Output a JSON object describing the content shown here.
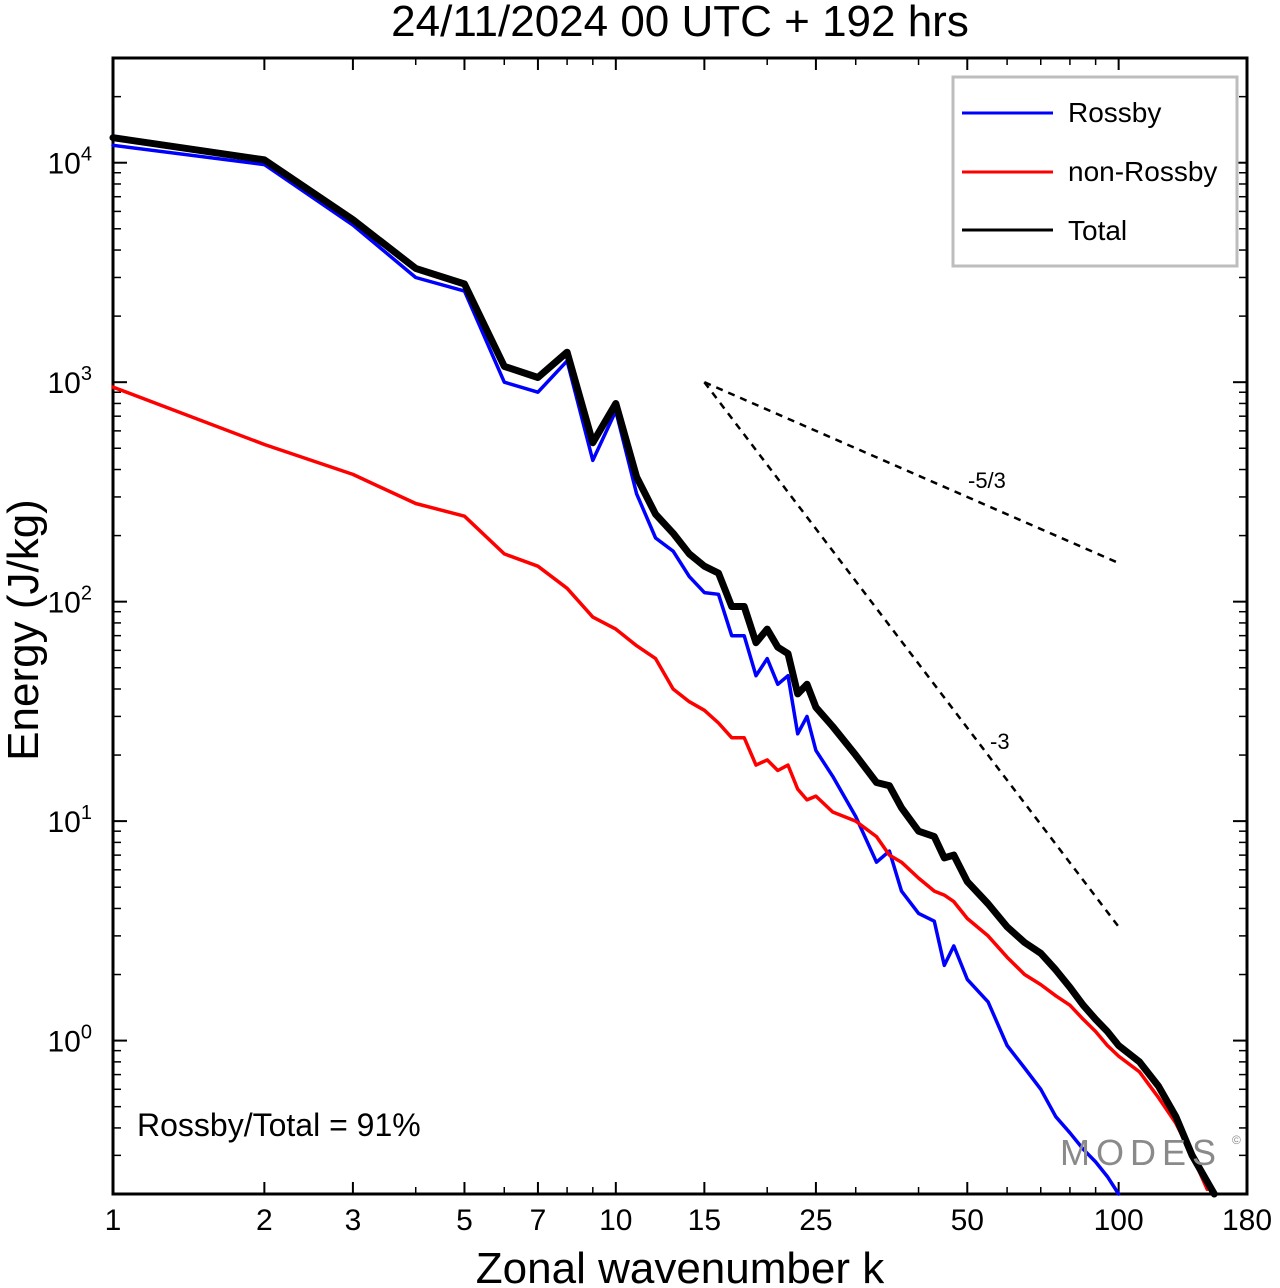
{
  "chart_data": {
    "type": "line",
    "title": "24/11/2024  00 UTC  + 192 hrs",
    "xlabel": "Zonal wavenumber k",
    "ylabel": "Energy (J/kg)",
    "x_scale": "log",
    "y_scale": "log",
    "xlim": [
      1,
      180
    ],
    "ylim": [
      0.2,
      30000
    ],
    "x_ticks": [
      1,
      2,
      3,
      5,
      7,
      10,
      15,
      25,
      50,
      100,
      180
    ],
    "y_ticks": [
      {
        "value": 1,
        "base": "10",
        "exp": "0"
      },
      {
        "value": 10,
        "base": "10",
        "exp": "1"
      },
      {
        "value": 100,
        "base": "10",
        "exp": "2"
      },
      {
        "value": 1000,
        "base": "10",
        "exp": "3"
      },
      {
        "value": 10000,
        "base": "10",
        "exp": "4"
      }
    ],
    "legend_position": "top-right",
    "series": [
      {
        "name": "Rossby",
        "color": "#0000ff",
        "x": [
          1,
          2,
          3,
          4,
          5,
          6,
          7,
          8,
          9,
          10,
          11,
          12,
          13,
          14,
          15,
          16,
          17,
          18,
          19,
          20,
          21,
          22,
          23,
          24,
          25,
          27,
          30,
          33,
          35,
          37,
          40,
          43,
          45,
          47,
          50,
          55,
          60,
          65,
          70,
          75,
          80,
          85,
          90,
          95,
          100
        ],
        "y": [
          12000,
          9800,
          5200,
          3000,
          2600,
          1000,
          900,
          1250,
          440,
          740,
          310,
          195,
          170,
          130,
          110,
          108,
          70,
          70,
          46,
          55,
          42,
          46,
          25,
          30,
          21,
          16,
          10.5,
          6.5,
          7.3,
          4.8,
          3.8,
          3.5,
          2.2,
          2.7,
          1.9,
          1.5,
          0.95,
          0.75,
          0.6,
          0.45,
          0.38,
          0.32,
          0.28,
          0.24,
          0.2
        ]
      },
      {
        "name": "non-Rossby",
        "color": "#ff0000",
        "x": [
          1,
          2,
          3,
          4,
          5,
          6,
          7,
          8,
          9,
          10,
          11,
          12,
          13,
          14,
          15,
          16,
          17,
          18,
          19,
          20,
          21,
          22,
          23,
          24,
          25,
          27,
          30,
          33,
          35,
          37,
          40,
          43,
          45,
          47,
          50,
          55,
          60,
          65,
          70,
          75,
          80,
          85,
          90,
          95,
          100,
          110,
          120,
          130,
          140,
          150
        ],
        "y": [
          950,
          520,
          380,
          280,
          245,
          165,
          145,
          115,
          85,
          75,
          63,
          55,
          40,
          35,
          32,
          28,
          24,
          24,
          18,
          19,
          17,
          18,
          14,
          12.5,
          13,
          11,
          10,
          8.5,
          7,
          6.5,
          5.5,
          4.8,
          4.6,
          4.3,
          3.6,
          3.0,
          2.4,
          2.0,
          1.8,
          1.6,
          1.45,
          1.25,
          1.1,
          0.95,
          0.85,
          0.72,
          0.55,
          0.42,
          0.3,
          0.21
        ]
      },
      {
        "name": "Total",
        "color": "#000000",
        "x": [
          1,
          2,
          3,
          4,
          5,
          6,
          7,
          8,
          9,
          10,
          11,
          12,
          13,
          14,
          15,
          16,
          17,
          18,
          19,
          20,
          21,
          22,
          23,
          24,
          25,
          27,
          30,
          33,
          35,
          37,
          40,
          43,
          45,
          47,
          50,
          55,
          60,
          65,
          70,
          75,
          80,
          85,
          90,
          95,
          100,
          110,
          120,
          130,
          140,
          155
        ],
        "y": [
          13000,
          10300,
          5500,
          3300,
          2800,
          1180,
          1050,
          1370,
          530,
          800,
          370,
          250,
          205,
          165,
          145,
          135,
          95,
          95,
          65,
          75,
          62,
          58,
          38,
          42,
          33,
          27,
          20,
          15,
          14.5,
          11.5,
          9,
          8.5,
          6.8,
          7,
          5.3,
          4.2,
          3.3,
          2.8,
          2.5,
          2.1,
          1.75,
          1.45,
          1.25,
          1.1,
          0.95,
          0.8,
          0.62,
          0.45,
          0.3,
          0.2
        ]
      }
    ],
    "reference_lines": [
      {
        "label": "-5/3",
        "x": [
          15,
          100
        ],
        "y": [
          1000,
          150
        ]
      },
      {
        "label": "-3",
        "x": [
          15,
          100
        ],
        "y": [
          1000,
          3.3
        ]
      }
    ],
    "annotations": {
      "ratio": "Rossby/Total = 91%",
      "logo": "MODES",
      "logo_mark": "©"
    }
  }
}
